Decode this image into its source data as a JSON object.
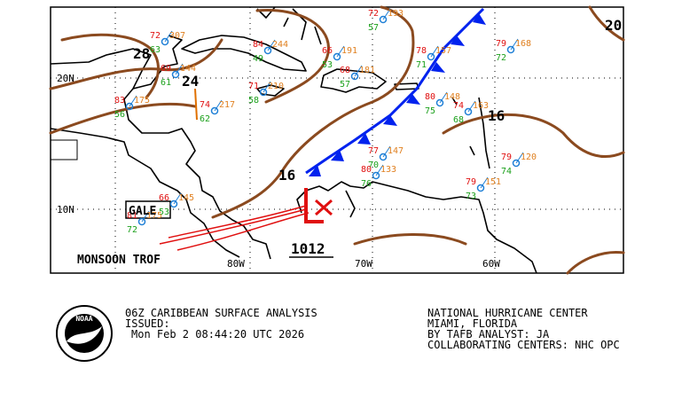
{
  "map": {
    "isobar_labels": [
      "28",
      "24",
      "20",
      "16",
      "16"
    ],
    "low_pressure": "1012",
    "gale": "GALE",
    "monsoon": "MONSOON TROF",
    "lat_labels": [
      "20N",
      "10N"
    ],
    "lon_labels": [
      "80W",
      "70W",
      "60W"
    ],
    "stations": [
      {
        "temp": "72",
        "dew": "57",
        "pres": "193"
      },
      {
        "temp": "72",
        "dew": "63",
        "pres": "307"
      },
      {
        "temp": "84",
        "dew": "49",
        "pres": "244"
      },
      {
        "temp": "69",
        "dew": "61",
        "pres": "144"
      },
      {
        "temp": "71",
        "dew": "58",
        "pres": "210"
      },
      {
        "temp": "74",
        "dew": "62",
        "pres": "217"
      },
      {
        "temp": "68",
        "dew": "57",
        "pres": "181"
      },
      {
        "temp": "78",
        "dew": "71",
        "pres": "157"
      },
      {
        "temp": "80",
        "dew": "75",
        "pres": "148"
      },
      {
        "temp": "74",
        "dew": "68",
        "pres": "163"
      },
      {
        "temp": "79",
        "dew": "72",
        "pres": "168"
      },
      {
        "temp": "77",
        "dew": "70",
        "pres": "147"
      },
      {
        "temp": "80",
        "dew": "76",
        "pres": "133"
      },
      {
        "temp": "79",
        "dew": "74",
        "pres": "120"
      },
      {
        "temp": "79",
        "dew": "73",
        "pres": "151"
      },
      {
        "temp": "66",
        "dew": "53",
        "pres": "145"
      },
      {
        "temp": "81",
        "dew": "72",
        "pres": "175"
      },
      {
        "temp": "83",
        "dew": "56",
        "pres": "175"
      },
      {
        "temp": "66",
        "dew": "53",
        "pres": "191"
      }
    ]
  },
  "footer": {
    "logo": "NOAA",
    "product": "06Z CARIBBEAN SURFACE ANALYSIS",
    "issued_label": "ISSUED:",
    "issued_time": "Mon Feb 2 08:44:20 UTC 2026",
    "center": "NATIONAL HURRICANE CENTER",
    "location": "MIAMI, FLORIDA",
    "analyst": "BY TAFB ANALYST: JA",
    "collaborators": "COLLABORATING CENTERS: NHC OPC"
  }
}
